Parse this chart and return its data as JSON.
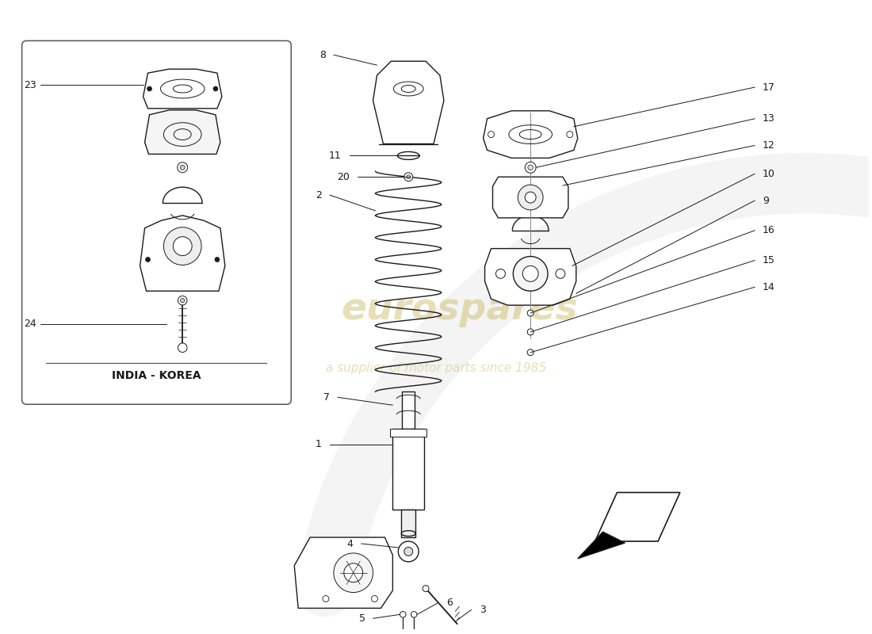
{
  "bg_color": "#ffffff",
  "line_color": "#1a1a1a",
  "label_color": "#1a1a1a",
  "wm_color1": "#c8b860",
  "wm_color2": "#c8b860",
  "india_korea_label": "INDIA - KOREA",
  "arrow_color": "#1a1a1a",
  "inset_box_color": "#555555",
  "fig_w": 11.0,
  "fig_h": 8.0
}
